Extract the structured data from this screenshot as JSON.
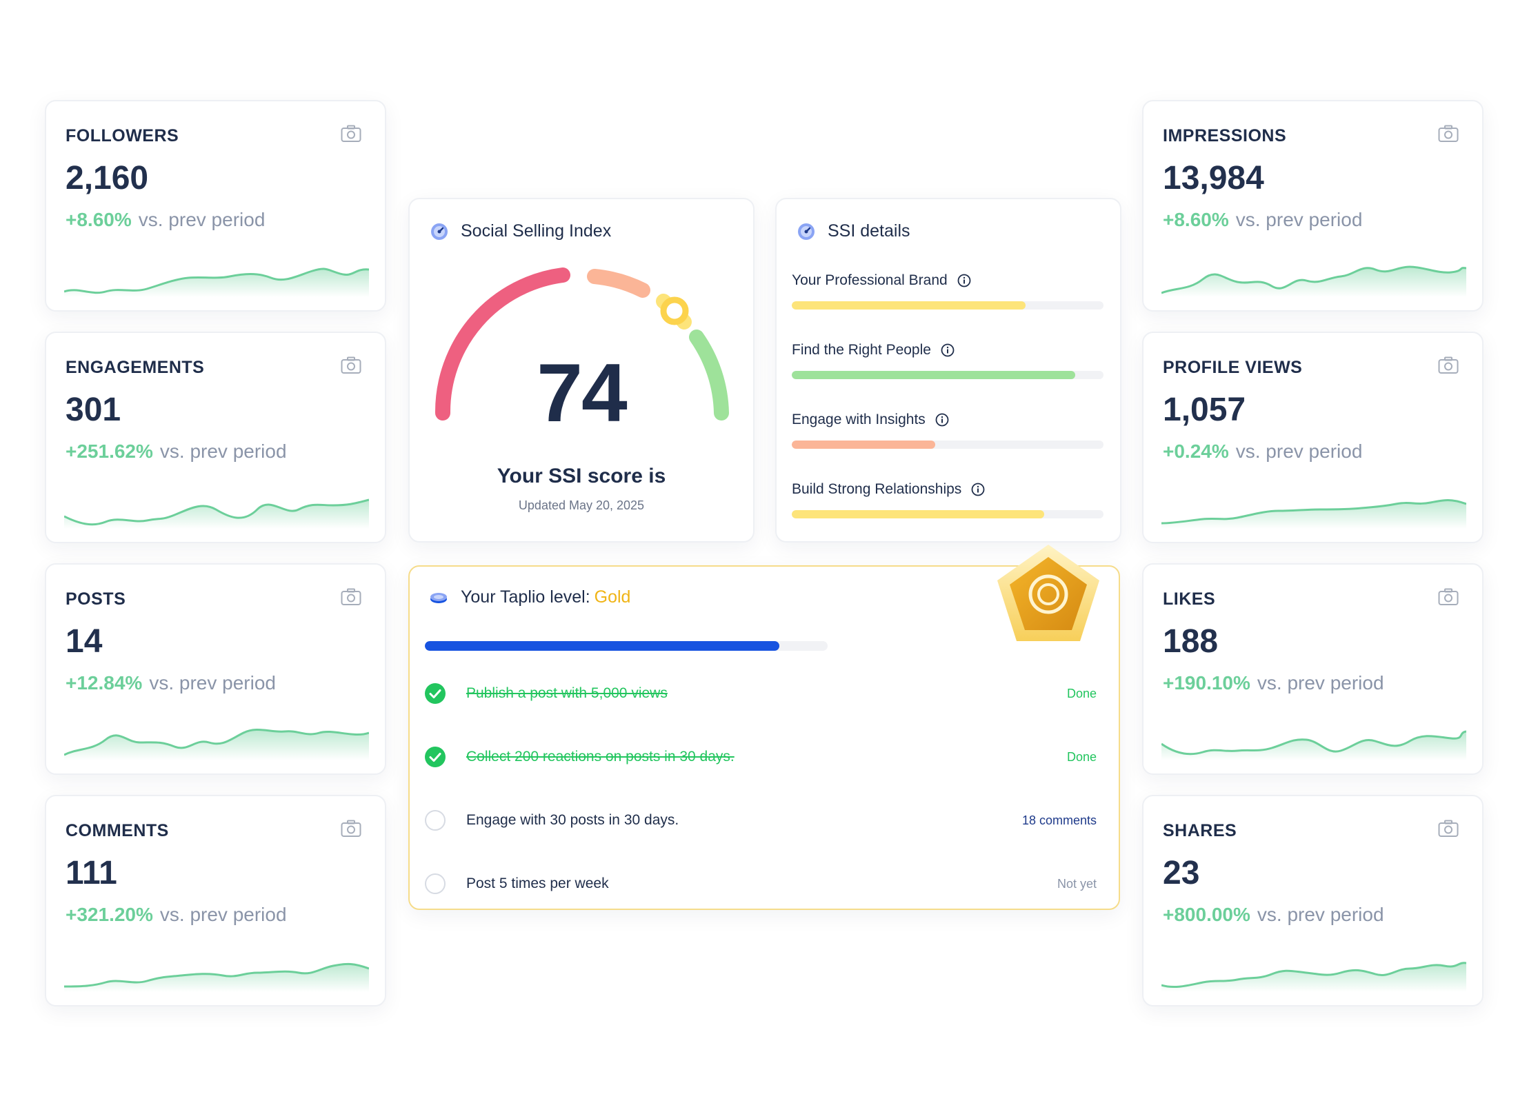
{
  "stats_left": [
    {
      "label": "FOLLOWERS",
      "value": "2,160",
      "change": "+8.60%",
      "suffix": "vs. prev period"
    },
    {
      "label": "ENGAGEMENTS",
      "value": "301",
      "change": "+251.62%",
      "suffix": "vs. prev period"
    },
    {
      "label": "POSTS",
      "value": "14",
      "change": "+12.84%",
      "suffix": "vs. prev period"
    },
    {
      "label": "COMMENTS",
      "value": "111",
      "change": "+321.20%",
      "suffix": "vs. prev period"
    }
  ],
  "stats_right": [
    {
      "label": "IMPRESSIONS",
      "value": "13,984",
      "change": "+8.60%",
      "suffix": "vs. prev period"
    },
    {
      "label": "PROFILE VIEWS",
      "value": "1,057",
      "change": "+0.24%",
      "suffix": "vs. prev period"
    },
    {
      "label": "LIKES",
      "value": "188",
      "change": "+190.10%",
      "suffix": "vs. prev period"
    },
    {
      "label": "SHARES",
      "value": "23",
      "change": "+800.00%",
      "suffix": "vs. prev period"
    }
  ],
  "ssi": {
    "title": "Social Selling Index",
    "score": "74",
    "score_label": "Your SSI score is",
    "updated": "Updated May 20, 2025"
  },
  "ssi_details": {
    "title": "SSI details",
    "items": [
      {
        "label": "Your Professional Brand",
        "fill": 0.75,
        "color": "#fde47a"
      },
      {
        "label": "Find the Right People",
        "fill": 0.91,
        "color": "#9ee29a"
      },
      {
        "label": "Engage with Insights",
        "fill": 0.46,
        "color": "#fbb597"
      },
      {
        "label": "Build Strong Relationships",
        "fill": 0.81,
        "color": "#fde47a"
      }
    ]
  },
  "taplio_level": {
    "title": "Your Taplio level:",
    "level": "Gold",
    "progress": 0.88,
    "tasks": [
      {
        "text": "Publish a post with 5,000 views",
        "status": "Done",
        "done": true
      },
      {
        "text": "Collect 200 reactions on posts in 30 days.",
        "status": "Done",
        "done": true
      },
      {
        "text": "Engage with 30 posts in 30 days.",
        "status": "18 comments",
        "done": false
      },
      {
        "text": "Post 5 times per week",
        "status": "Not yet",
        "done": false
      }
    ]
  },
  "colors": {
    "positive": "#6ccf9a",
    "done": "#22c55e",
    "link": "#1e3a8a",
    "muted": "#8a94a8",
    "accent": "#1753e0"
  },
  "icons": [
    "camera-icon",
    "gauge-icon",
    "info-icon",
    "coin-icon",
    "check-icon",
    "gold-badge-icon"
  ]
}
